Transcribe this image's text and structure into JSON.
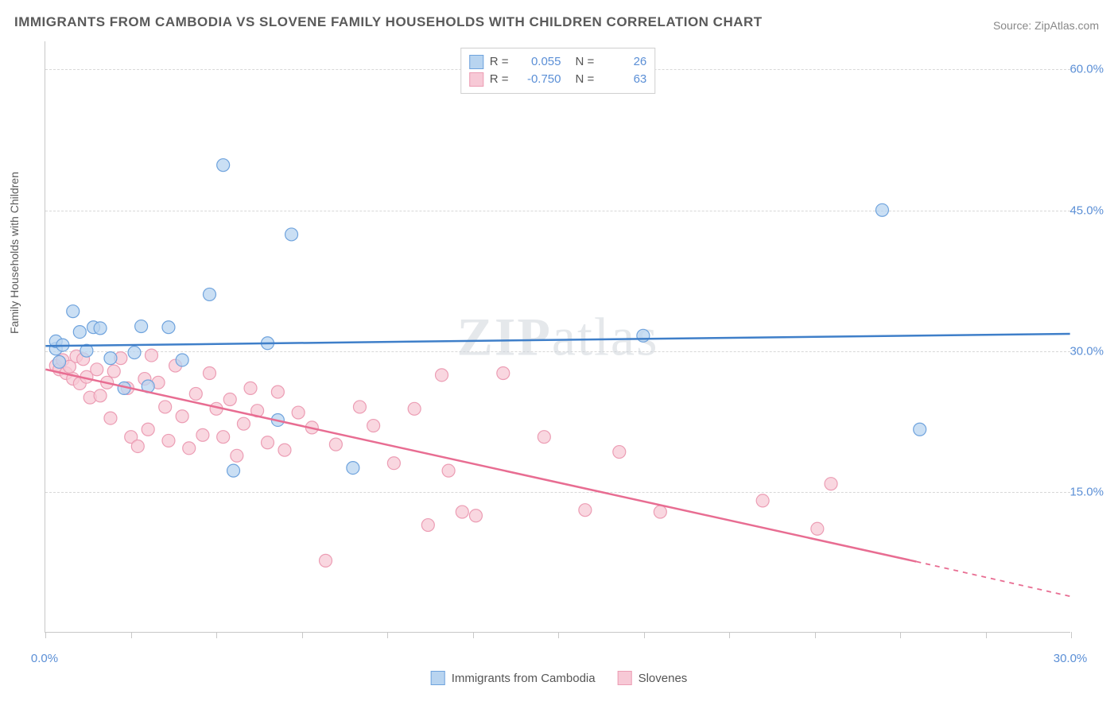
{
  "title": "IMMIGRANTS FROM CAMBODIA VS SLOVENE FAMILY HOUSEHOLDS WITH CHILDREN CORRELATION CHART",
  "source": "Source: ZipAtlas.com",
  "watermark": "ZIPatlas",
  "chart": {
    "type": "scatter",
    "ylabel": "Family Households with Children",
    "xlim": [
      0,
      30
    ],
    "ylim": [
      0,
      63
    ],
    "xtick_labels": [
      "0.0%",
      "30.0%"
    ],
    "xtick_positions": [
      0,
      30
    ],
    "xtick_minor": [
      0,
      2.5,
      5,
      7.5,
      10,
      12.5,
      15,
      17.5,
      20,
      22.5,
      25,
      27.5,
      30
    ],
    "ytick_labels": [
      "15.0%",
      "30.0%",
      "45.0%",
      "60.0%"
    ],
    "ytick_positions": [
      15,
      30,
      45,
      60
    ],
    "background_color": "#ffffff",
    "grid_color": "#d8d8d8",
    "axis_color": "#c8c8c8",
    "label_color": "#5a5a5a",
    "tick_label_color": "#5b8fd6",
    "marker_radius": 8,
    "series": [
      {
        "name": "Immigrants from Cambodia",
        "color_fill": "#b8d4f0",
        "color_stroke": "#6fa3dd",
        "trend_color": "#3f7fc9",
        "R": "0.055",
        "N": "26",
        "trend": {
          "x1": 0,
          "y1": 30.5,
          "x2": 30,
          "y2": 31.8
        },
        "points": [
          {
            "x": 0.3,
            "y": 30.2
          },
          {
            "x": 0.3,
            "y": 31.0
          },
          {
            "x": 0.5,
            "y": 30.6
          },
          {
            "x": 0.4,
            "y": 28.8
          },
          {
            "x": 0.8,
            "y": 34.2
          },
          {
            "x": 1.4,
            "y": 32.5
          },
          {
            "x": 1.6,
            "y": 32.4
          },
          {
            "x": 1.0,
            "y": 32.0
          },
          {
            "x": 1.2,
            "y": 30.0
          },
          {
            "x": 1.9,
            "y": 29.2
          },
          {
            "x": 2.3,
            "y": 26.0
          },
          {
            "x": 2.8,
            "y": 32.6
          },
          {
            "x": 2.6,
            "y": 29.8
          },
          {
            "x": 3.0,
            "y": 26.2
          },
          {
            "x": 3.6,
            "y": 32.5
          },
          {
            "x": 4.0,
            "y": 29.0
          },
          {
            "x": 4.8,
            "y": 36.0
          },
          {
            "x": 5.5,
            "y": 17.2
          },
          {
            "x": 5.2,
            "y": 49.8
          },
          {
            "x": 6.5,
            "y": 30.8
          },
          {
            "x": 6.8,
            "y": 22.6
          },
          {
            "x": 7.2,
            "y": 42.4
          },
          {
            "x": 9.0,
            "y": 17.5
          },
          {
            "x": 17.5,
            "y": 31.6
          },
          {
            "x": 24.5,
            "y": 45.0
          },
          {
            "x": 25.6,
            "y": 21.6
          }
        ]
      },
      {
        "name": "Slovenes",
        "color_fill": "#f7c9d6",
        "color_stroke": "#ec9db4",
        "trend_color": "#e86d92",
        "R": "-0.750",
        "N": "63",
        "trend": {
          "x1": 0,
          "y1": 28.0,
          "x2": 25.5,
          "y2": 7.5
        },
        "trend_ext": {
          "x1": 25.5,
          "y1": 7.5,
          "x2": 30,
          "y2": 3.8
        },
        "points": [
          {
            "x": 0.3,
            "y": 28.4
          },
          {
            "x": 0.4,
            "y": 28.0
          },
          {
            "x": 0.6,
            "y": 27.6
          },
          {
            "x": 0.5,
            "y": 29.0
          },
          {
            "x": 0.7,
            "y": 28.3
          },
          {
            "x": 0.8,
            "y": 27.0
          },
          {
            "x": 0.9,
            "y": 29.4
          },
          {
            "x": 1.0,
            "y": 26.5
          },
          {
            "x": 1.2,
            "y": 27.2
          },
          {
            "x": 1.3,
            "y": 25.0
          },
          {
            "x": 1.1,
            "y": 29.1
          },
          {
            "x": 1.5,
            "y": 28.0
          },
          {
            "x": 1.6,
            "y": 25.2
          },
          {
            "x": 1.8,
            "y": 26.6
          },
          {
            "x": 1.9,
            "y": 22.8
          },
          {
            "x": 2.0,
            "y": 27.8
          },
          {
            "x": 2.2,
            "y": 29.2
          },
          {
            "x": 2.4,
            "y": 26.0
          },
          {
            "x": 2.5,
            "y": 20.8
          },
          {
            "x": 2.7,
            "y": 19.8
          },
          {
            "x": 2.9,
            "y": 27.0
          },
          {
            "x": 3.0,
            "y": 21.6
          },
          {
            "x": 3.1,
            "y": 29.5
          },
          {
            "x": 3.3,
            "y": 26.6
          },
          {
            "x": 3.5,
            "y": 24.0
          },
          {
            "x": 3.6,
            "y": 20.4
          },
          {
            "x": 3.8,
            "y": 28.4
          },
          {
            "x": 4.0,
            "y": 23.0
          },
          {
            "x": 4.2,
            "y": 19.6
          },
          {
            "x": 4.4,
            "y": 25.4
          },
          {
            "x": 4.6,
            "y": 21.0
          },
          {
            "x": 4.8,
            "y": 27.6
          },
          {
            "x": 5.0,
            "y": 23.8
          },
          {
            "x": 5.2,
            "y": 20.8
          },
          {
            "x": 5.4,
            "y": 24.8
          },
          {
            "x": 5.6,
            "y": 18.8
          },
          {
            "x": 5.8,
            "y": 22.2
          },
          {
            "x": 6.0,
            "y": 26.0
          },
          {
            "x": 6.2,
            "y": 23.6
          },
          {
            "x": 6.5,
            "y": 20.2
          },
          {
            "x": 6.8,
            "y": 25.6
          },
          {
            "x": 7.0,
            "y": 19.4
          },
          {
            "x": 7.4,
            "y": 23.4
          },
          {
            "x": 7.8,
            "y": 21.8
          },
          {
            "x": 8.2,
            "y": 7.6
          },
          {
            "x": 8.5,
            "y": 20.0
          },
          {
            "x": 9.2,
            "y": 24.0
          },
          {
            "x": 9.6,
            "y": 22.0
          },
          {
            "x": 10.2,
            "y": 18.0
          },
          {
            "x": 10.8,
            "y": 23.8
          },
          {
            "x": 11.2,
            "y": 11.4
          },
          {
            "x": 11.6,
            "y": 27.4
          },
          {
            "x": 11.8,
            "y": 17.2
          },
          {
            "x": 12.2,
            "y": 12.8
          },
          {
            "x": 12.6,
            "y": 12.4
          },
          {
            "x": 13.4,
            "y": 27.6
          },
          {
            "x": 14.6,
            "y": 20.8
          },
          {
            "x": 15.8,
            "y": 13.0
          },
          {
            "x": 16.8,
            "y": 19.2
          },
          {
            "x": 18.0,
            "y": 12.8
          },
          {
            "x": 21.0,
            "y": 14.0
          },
          {
            "x": 22.6,
            "y": 11.0
          },
          {
            "x": 23.0,
            "y": 15.8
          }
        ]
      }
    ]
  },
  "legend_bottom": [
    {
      "label": "Immigrants from Cambodia",
      "fill": "#b8d4f0",
      "stroke": "#6fa3dd"
    },
    {
      "label": "Slovenes",
      "fill": "#f7c9d6",
      "stroke": "#ec9db4"
    }
  ]
}
